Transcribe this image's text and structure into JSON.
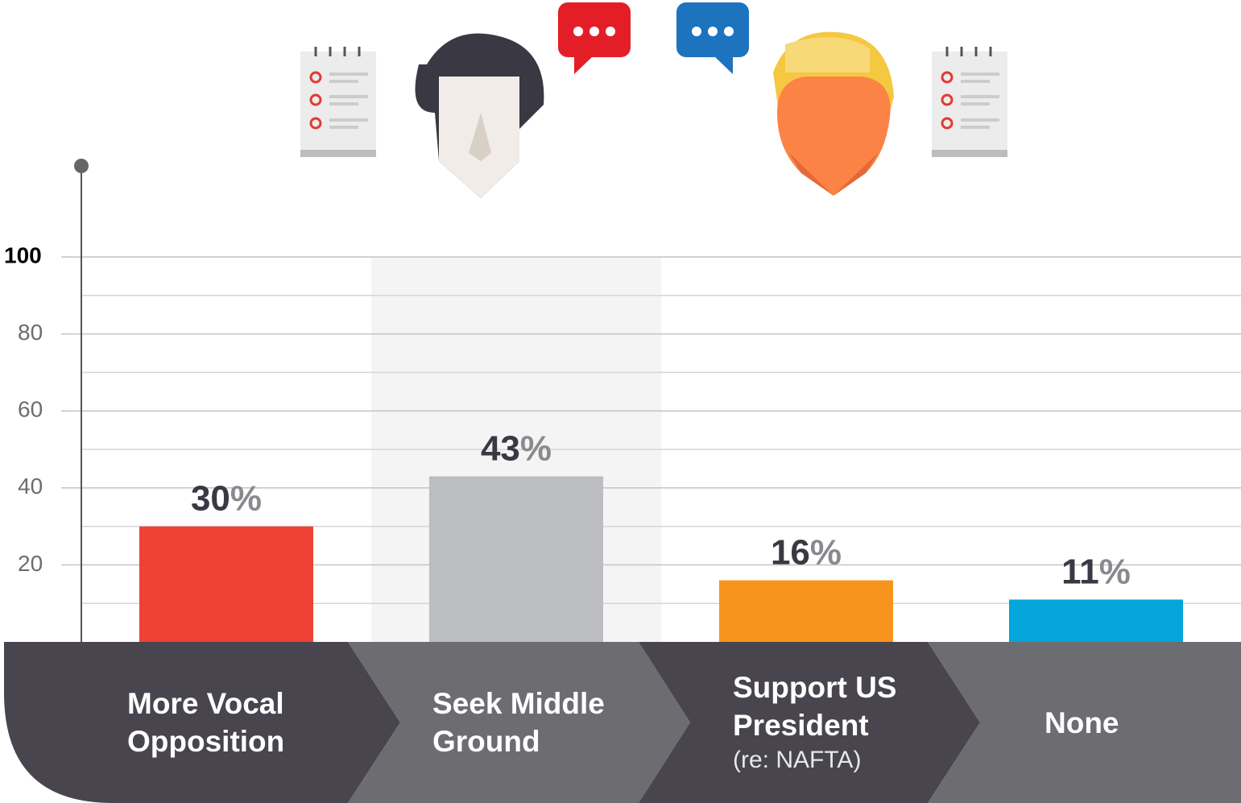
{
  "chart_data": {
    "type": "bar",
    "categories": [
      "More Vocal Opposition",
      "Seek Middle Ground",
      "Support US President",
      "None"
    ],
    "annotations": [
      "(re: NAFTA)"
    ],
    "values": [
      30,
      43,
      16,
      11
    ],
    "value_labels": [
      "30%",
      "43%",
      "16%",
      "11%"
    ],
    "colors": [
      "#ef4136",
      "#bcbdc0",
      "#f7941d",
      "#05a6d9"
    ],
    "highlight_category": 1,
    "ylim": [
      0,
      100
    ],
    "yticks": [
      20,
      40,
      60,
      80,
      100
    ],
    "minor_yticks": [
      10,
      30,
      50,
      70,
      90
    ],
    "grid": true
  }
}
